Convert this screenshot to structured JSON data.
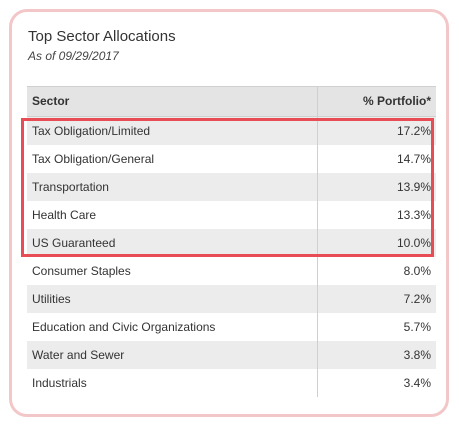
{
  "card": {
    "title": "Top Sector Allocations",
    "as_of": "As of 09/29/2017"
  },
  "table": {
    "headers": {
      "sector": "Sector",
      "portfolio": "% Portfolio*"
    },
    "rows": [
      {
        "sector": "Tax Obligation/Limited",
        "pct": "17.2%"
      },
      {
        "sector": "Tax Obligation/General",
        "pct": "14.7%"
      },
      {
        "sector": "Transportation",
        "pct": "13.9%"
      },
      {
        "sector": "Health Care",
        "pct": "13.3%"
      },
      {
        "sector": "US Guaranteed",
        "pct": "10.0%"
      },
      {
        "sector": "Consumer Staples",
        "pct": "8.0%"
      },
      {
        "sector": "Utilities",
        "pct": "7.2%"
      },
      {
        "sector": "Education and Civic Organizations",
        "pct": "5.7%"
      },
      {
        "sector": "Water and Sewer",
        "pct": "3.8%"
      },
      {
        "sector": "Industrials",
        "pct": "3.4%"
      }
    ]
  },
  "colors": {
    "card_border": "#f3c6c8",
    "highlight_border": "#e84c55",
    "row_gray": "#ececec",
    "header_bg": "#e4e4e4"
  }
}
